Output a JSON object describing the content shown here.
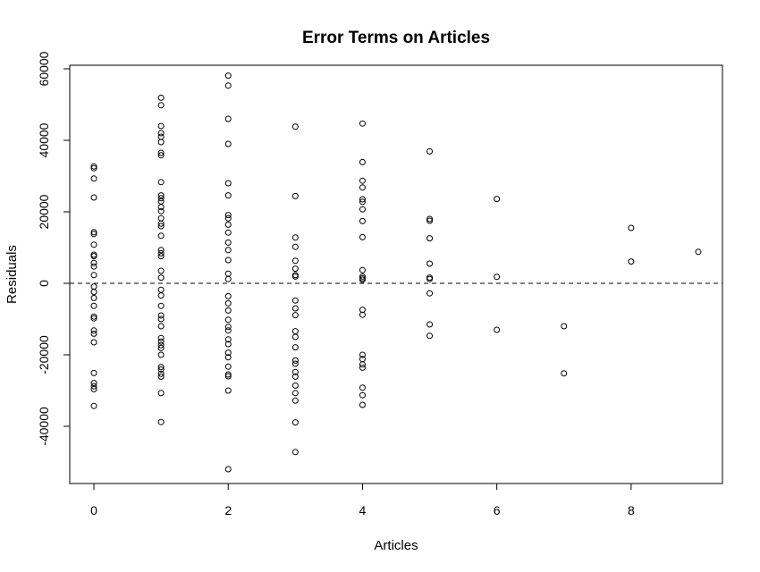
{
  "chart_data": {
    "type": "scatter",
    "title": "Error Terms on Articles",
    "xlabel": "Articles",
    "ylabel": "Residuals",
    "xlim": [
      -0.36,
      9.36
    ],
    "ylim": [
      -56000,
      61000
    ],
    "xticks": [
      0,
      2,
      4,
      6,
      8
    ],
    "yticks": [
      -40000,
      -20000,
      0,
      20000,
      40000,
      60000
    ],
    "x_tick_labels": [
      "0",
      "2",
      "4",
      "6",
      "8"
    ],
    "y_tick_labels": [
      "-40000",
      "-20000",
      "0",
      "20000",
      "40000",
      "60000"
    ],
    "reference_line": {
      "y": 0,
      "style": "dashed"
    },
    "grid": false,
    "series": [
      {
        "points": [
          [
            0,
            32700
          ],
          [
            0,
            32200
          ],
          [
            0,
            29300
          ],
          [
            0,
            24000
          ],
          [
            0,
            14300
          ],
          [
            0,
            13800
          ],
          [
            0,
            10800
          ],
          [
            0,
            8000
          ],
          [
            0,
            7600
          ],
          [
            0,
            5700
          ],
          [
            0,
            4700
          ],
          [
            0,
            2300
          ],
          [
            0,
            -900
          ],
          [
            0,
            -2400
          ],
          [
            0,
            -4100
          ],
          [
            0,
            -6300
          ],
          [
            0,
            -9300
          ],
          [
            0,
            -9800
          ],
          [
            0,
            -13200
          ],
          [
            0,
            -14100
          ],
          [
            0,
            -16500
          ],
          [
            0,
            -25100
          ],
          [
            0,
            -27900
          ],
          [
            0,
            -28800
          ],
          [
            0,
            -29600
          ],
          [
            0,
            -34300
          ],
          [
            1,
            51900
          ],
          [
            1,
            49800
          ],
          [
            1,
            44000
          ],
          [
            1,
            42000
          ],
          [
            1,
            41000
          ],
          [
            1,
            39500
          ],
          [
            1,
            36500
          ],
          [
            1,
            35800
          ],
          [
            1,
            28300
          ],
          [
            1,
            24600
          ],
          [
            1,
            23800
          ],
          [
            1,
            22900
          ],
          [
            1,
            21300
          ],
          [
            1,
            20200
          ],
          [
            1,
            18200
          ],
          [
            1,
            16700
          ],
          [
            1,
            16000
          ],
          [
            1,
            13300
          ],
          [
            1,
            9300
          ],
          [
            1,
            8400
          ],
          [
            1,
            7600
          ],
          [
            1,
            3500
          ],
          [
            1,
            1600
          ],
          [
            1,
            -1800
          ],
          [
            1,
            -3400
          ],
          [
            1,
            -6300
          ],
          [
            1,
            -9000
          ],
          [
            1,
            -10000
          ],
          [
            1,
            -12000
          ],
          [
            1,
            -15300
          ],
          [
            1,
            -16300
          ],
          [
            1,
            -17300
          ],
          [
            1,
            -18100
          ],
          [
            1,
            -20000
          ],
          [
            1,
            -23400
          ],
          [
            1,
            -24100
          ],
          [
            1,
            -25300
          ],
          [
            1,
            -26100
          ],
          [
            1,
            -30700
          ],
          [
            1,
            -38800
          ],
          [
            2,
            58100
          ],
          [
            2,
            55300
          ],
          [
            2,
            46000
          ],
          [
            2,
            39000
          ],
          [
            2,
            28000
          ],
          [
            2,
            24600
          ],
          [
            2,
            19100
          ],
          [
            2,
            18200
          ],
          [
            2,
            16400
          ],
          [
            2,
            14200
          ],
          [
            2,
            11400
          ],
          [
            2,
            9300
          ],
          [
            2,
            6500
          ],
          [
            2,
            2700
          ],
          [
            2,
            1200
          ],
          [
            2,
            -3600
          ],
          [
            2,
            -5600
          ],
          [
            2,
            -7600
          ],
          [
            2,
            -10200
          ],
          [
            2,
            -12200
          ],
          [
            2,
            -13200
          ],
          [
            2,
            -15700
          ],
          [
            2,
            -17000
          ],
          [
            2,
            -19400
          ],
          [
            2,
            -20700
          ],
          [
            2,
            -23300
          ],
          [
            2,
            -25500
          ],
          [
            2,
            -26000
          ],
          [
            2,
            -30000
          ],
          [
            2,
            -52000
          ],
          [
            3,
            43800
          ],
          [
            3,
            24400
          ],
          [
            3,
            12800
          ],
          [
            3,
            10200
          ],
          [
            3,
            6300
          ],
          [
            3,
            4100
          ],
          [
            3,
            2300
          ],
          [
            3,
            1900
          ],
          [
            3,
            -4800
          ],
          [
            3,
            -7000
          ],
          [
            3,
            -8900
          ],
          [
            3,
            -13400
          ],
          [
            3,
            -15000
          ],
          [
            3,
            -17900
          ],
          [
            3,
            -21600
          ],
          [
            3,
            -22500
          ],
          [
            3,
            -24800
          ],
          [
            3,
            -26100
          ],
          [
            3,
            -28600
          ],
          [
            3,
            -30700
          ],
          [
            3,
            -32800
          ],
          [
            3,
            -38900
          ],
          [
            3,
            -47200
          ],
          [
            4,
            44700
          ],
          [
            4,
            33900
          ],
          [
            4,
            28700
          ],
          [
            4,
            26800
          ],
          [
            4,
            23500
          ],
          [
            4,
            22800
          ],
          [
            4,
            20700
          ],
          [
            4,
            17400
          ],
          [
            4,
            12900
          ],
          [
            4,
            3700
          ],
          [
            4,
            1900
          ],
          [
            4,
            1400
          ],
          [
            4,
            1000
          ],
          [
            4,
            -7400
          ],
          [
            4,
            -8800
          ],
          [
            4,
            -20000
          ],
          [
            4,
            -21200
          ],
          [
            4,
            -22700
          ],
          [
            4,
            -23600
          ],
          [
            4,
            -29200
          ],
          [
            4,
            -31300
          ],
          [
            4,
            -34000
          ],
          [
            5,
            36900
          ],
          [
            5,
            18000
          ],
          [
            5,
            17500
          ],
          [
            5,
            12600
          ],
          [
            5,
            5500
          ],
          [
            5,
            1600
          ],
          [
            5,
            1200
          ],
          [
            5,
            -2800
          ],
          [
            5,
            -11500
          ],
          [
            5,
            -14700
          ],
          [
            6,
            23600
          ],
          [
            6,
            1800
          ],
          [
            6,
            -13000
          ],
          [
            7,
            -12000
          ],
          [
            7,
            -25200
          ],
          [
            8,
            15500
          ],
          [
            8,
            6100
          ],
          [
            9,
            8800
          ]
        ]
      }
    ]
  }
}
